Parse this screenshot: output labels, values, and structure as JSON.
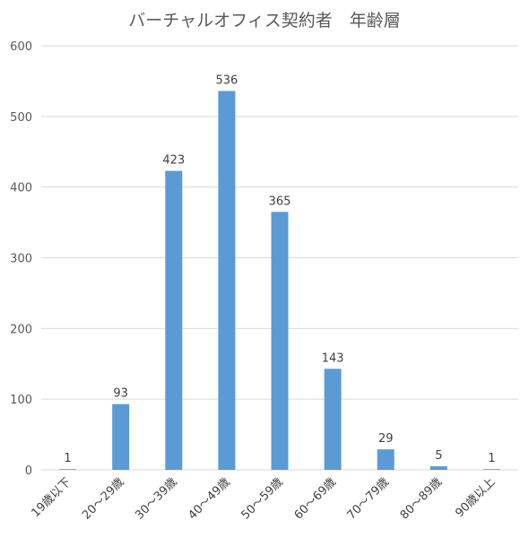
{
  "chart_data": {
    "type": "bar",
    "title": "バーチャルオフィス契約者　年齢層",
    "categories": [
      "19歳以下",
      "20～29歳",
      "30～39歳",
      "40～49歳",
      "50～59歳",
      "60～69歳",
      "70～79歳",
      "80～89歳",
      "90歳以上"
    ],
    "values": [
      1,
      93,
      423,
      536,
      365,
      143,
      29,
      5,
      1
    ],
    "data_labels": [
      "1",
      "93",
      "423",
      "536",
      "365",
      "143",
      "29",
      "5",
      "1"
    ],
    "ylim": [
      0,
      600
    ],
    "yticks": [
      "0",
      "100",
      "200",
      "300",
      "400",
      "500",
      "600"
    ],
    "grid": true,
    "legend": "none",
    "bar_color": "#5B9BD5",
    "grid_color": "#D9D9D9",
    "text_color": "#595959"
  }
}
